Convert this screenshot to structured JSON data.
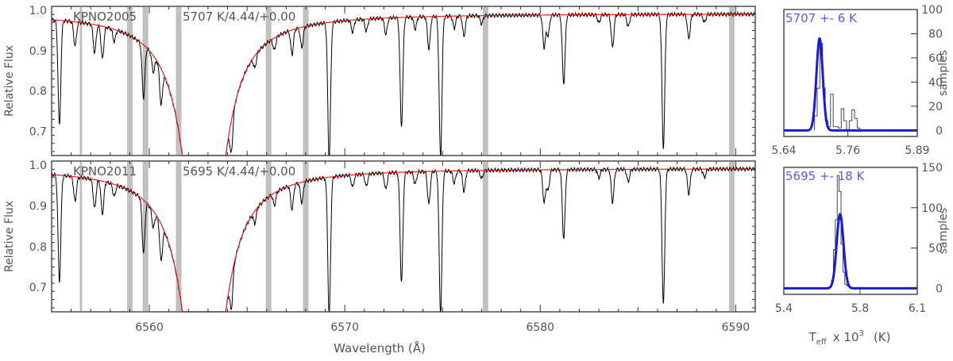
{
  "chart_data": [
    {
      "type": "line",
      "panel": "spectrum-top",
      "label_name": "KPNO2005",
      "label_params": "5707 K/4.44/+0.00",
      "xlabel": "",
      "ylabel": "Relative Flux",
      "xlim": [
        6555,
        6591
      ],
      "ylim": [
        0.64,
        1.01
      ],
      "xticks": [
        6560,
        6570,
        6580,
        6590
      ],
      "yticks": [
        0.7,
        0.8,
        0.9,
        1.0
      ],
      "ytick_labels": [
        "0.7",
        "0.8",
        "0.9",
        "1.0"
      ],
      "masks": [
        6556.5,
        6559.0,
        6559.8,
        6561.5,
        6566.1,
        6568.0,
        6577.2,
        6589.8
      ],
      "continuum_level": 0.992,
      "line_core": 6562.8,
      "absorption_lines": [
        {
          "x": 6555.4,
          "depth": 0.26
        },
        {
          "x": 6556.2,
          "depth": 0.06
        },
        {
          "x": 6557.2,
          "depth": 0.07
        },
        {
          "x": 6557.6,
          "depth": 0.08
        },
        {
          "x": 6558.2,
          "depth": 0.03
        },
        {
          "x": 6559.7,
          "depth": 0.13
        },
        {
          "x": 6560.2,
          "depth": 0.04
        },
        {
          "x": 6560.6,
          "depth": 0.09
        },
        {
          "x": 6564.2,
          "depth": 0.08
        },
        {
          "x": 6565.4,
          "depth": 0.03
        },
        {
          "x": 6566.4,
          "depth": 0.03
        },
        {
          "x": 6567.3,
          "depth": 0.06
        },
        {
          "x": 6567.8,
          "depth": 0.05
        },
        {
          "x": 6569.2,
          "depth": 0.34
        },
        {
          "x": 6570.4,
          "depth": 0.03
        },
        {
          "x": 6571.1,
          "depth": 0.03
        },
        {
          "x": 6572.1,
          "depth": 0.04
        },
        {
          "x": 6572.9,
          "depth": 0.27
        },
        {
          "x": 6573.6,
          "depth": 0.03
        },
        {
          "x": 6574.3,
          "depth": 0.08
        },
        {
          "x": 6574.9,
          "depth": 0.35
        },
        {
          "x": 6575.6,
          "depth": 0.03
        },
        {
          "x": 6576.1,
          "depth": 0.05
        },
        {
          "x": 6577.0,
          "depth": 0.02
        },
        {
          "x": 6580.2,
          "depth": 0.08
        },
        {
          "x": 6580.4,
          "depth": 0.05
        },
        {
          "x": 6581.2,
          "depth": 0.17
        },
        {
          "x": 6583.0,
          "depth": 0.02
        },
        {
          "x": 6583.7,
          "depth": 0.08
        },
        {
          "x": 6584.5,
          "depth": 0.03
        },
        {
          "x": 6586.3,
          "depth": 0.33
        },
        {
          "x": 6587.6,
          "depth": 0.06
        },
        {
          "x": 6588.4,
          "depth": 0.02
        }
      ]
    },
    {
      "type": "line",
      "panel": "spectrum-bottom",
      "label_name": "KPNO2011",
      "label_params": "5695 K/4.44/+0.00",
      "xlabel": "Wavelength (Å)",
      "ylabel": "Relative Flux",
      "xlim": [
        6555,
        6591
      ],
      "ylim": [
        0.64,
        1.01
      ],
      "xticks": [
        6560,
        6570,
        6580,
        6590
      ],
      "xtick_labels": [
        "6560",
        "6570",
        "6580",
        "6590"
      ],
      "yticks": [
        0.7,
        0.8,
        0.9,
        1.0
      ],
      "ytick_labels": [
        "0.7",
        "0.8",
        "0.9",
        "1.0"
      ],
      "masks": [
        6556.5,
        6559.0,
        6559.8,
        6561.5,
        6566.1,
        6568.0,
        6577.2,
        6589.8
      ],
      "continuum_level": 0.992,
      "line_core": 6562.8,
      "absorption_lines": [
        {
          "x": 6555.4,
          "depth": 0.26
        },
        {
          "x": 6556.2,
          "depth": 0.06
        },
        {
          "x": 6557.2,
          "depth": 0.07
        },
        {
          "x": 6557.6,
          "depth": 0.08
        },
        {
          "x": 6558.2,
          "depth": 0.03
        },
        {
          "x": 6559.7,
          "depth": 0.13
        },
        {
          "x": 6560.2,
          "depth": 0.04
        },
        {
          "x": 6560.6,
          "depth": 0.09
        },
        {
          "x": 6564.2,
          "depth": 0.08
        },
        {
          "x": 6565.4,
          "depth": 0.03
        },
        {
          "x": 6566.4,
          "depth": 0.03
        },
        {
          "x": 6567.3,
          "depth": 0.06
        },
        {
          "x": 6567.8,
          "depth": 0.05
        },
        {
          "x": 6569.2,
          "depth": 0.34
        },
        {
          "x": 6570.4,
          "depth": 0.03
        },
        {
          "x": 6571.1,
          "depth": 0.03
        },
        {
          "x": 6572.1,
          "depth": 0.04
        },
        {
          "x": 6572.9,
          "depth": 0.27
        },
        {
          "x": 6573.6,
          "depth": 0.03
        },
        {
          "x": 6574.3,
          "depth": 0.08
        },
        {
          "x": 6574.9,
          "depth": 0.35
        },
        {
          "x": 6575.6,
          "depth": 0.03
        },
        {
          "x": 6576.1,
          "depth": 0.05
        },
        {
          "x": 6577.0,
          "depth": 0.02
        },
        {
          "x": 6580.2,
          "depth": 0.08
        },
        {
          "x": 6580.4,
          "depth": 0.05
        },
        {
          "x": 6581.2,
          "depth": 0.17
        },
        {
          "x": 6583.0,
          "depth": 0.02
        },
        {
          "x": 6583.7,
          "depth": 0.08
        },
        {
          "x": 6584.5,
          "depth": 0.03
        },
        {
          "x": 6586.3,
          "depth": 0.33
        },
        {
          "x": 6587.6,
          "depth": 0.06
        },
        {
          "x": 6588.4,
          "depth": 0.02
        }
      ]
    },
    {
      "type": "bar",
      "panel": "histogram-top",
      "annotation": "5707 +- 6 K",
      "ylabel": "samples",
      "xlim": [
        5.64,
        5.89
      ],
      "ylim": [
        -5,
        100
      ],
      "xticks": [
        5.64,
        5.76,
        5.89
      ],
      "xtick_labels": [
        "5.64",
        "5.76",
        "5.89"
      ],
      "yticks": [
        0,
        20,
        40,
        60,
        80,
        100
      ],
      "ytick_labels": [
        "0",
        "20",
        "40",
        "60",
        "80",
        "100"
      ],
      "bin_edges": [
        5.6975,
        5.7025,
        5.7075,
        5.7125,
        5.7175,
        5.7225,
        5.7275,
        5.7325,
        5.7375,
        5.7425,
        5.7475,
        5.7525,
        5.7575,
        5.7625,
        5.7675,
        5.7725,
        5.7775,
        5.7825
      ],
      "counts": [
        12,
        35,
        72,
        35,
        8,
        3,
        30,
        3,
        3,
        2,
        18,
        8,
        0,
        8,
        17,
        10,
        2
      ],
      "fit": {
        "mean": 5.707,
        "sigma": 0.006,
        "amplitude": 76
      }
    },
    {
      "type": "bar",
      "panel": "histogram-bottom",
      "annotation": "5695 +- 18 K",
      "xlabel": "T_eff x 10^3 (K)",
      "ylabel": "samples",
      "xlim": [
        5.4,
        6.1
      ],
      "ylim": [
        -7.5,
        150
      ],
      "xticks": [
        5.4,
        5.8,
        6.1
      ],
      "xtick_labels": [
        "5.4",
        "5.8",
        "6.1"
      ],
      "yticks": [
        0,
        50,
        100,
        150
      ],
      "ytick_labels": [
        "0",
        "50",
        "100",
        "150"
      ],
      "bin_edges": [
        5.64,
        5.65,
        5.66,
        5.67,
        5.68,
        5.69,
        5.7,
        5.71,
        5.72,
        5.73,
        5.74,
        5.75
      ],
      "counts": [
        2,
        10,
        48,
        85,
        140,
        120,
        55,
        20,
        5,
        3,
        2
      ],
      "fit": {
        "mean": 5.695,
        "sigma": 0.018,
        "amplitude": 92
      }
    }
  ],
  "xaxis_label_left": "Wavelength (Å)",
  "xaxis_label_right_main": "T",
  "xaxis_label_right_sub": "eff",
  "xaxis_label_right_rest": "x 10",
  "xaxis_label_right_sup": "3",
  "xaxis_label_right_unit": "(K)",
  "colors": {
    "spectrum": "#000000",
    "model": "#e02020",
    "mask": "#c0c0c0",
    "fit": "#1a1ad8",
    "annotation": "#5a5aee",
    "axis": "#333333"
  }
}
